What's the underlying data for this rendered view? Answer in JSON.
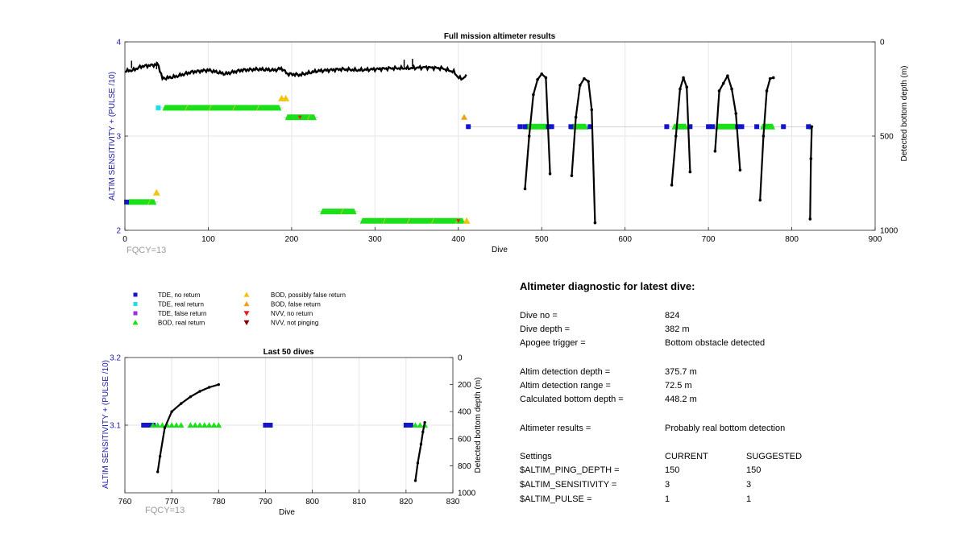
{
  "chart_data": [
    {
      "type": "scatter",
      "title": "Full mission altimeter results",
      "xlabel": "Dive",
      "ylabel": "ALTIM SENSITIVITY + (PULSE /10)",
      "y2label": "Detected bottom depth (m)",
      "xlim": [
        0,
        900
      ],
      "ylim": [
        2,
        4
      ],
      "y2lim": [
        1000,
        0
      ],
      "x_ticks": [
        0,
        100,
        200,
        300,
        400,
        500,
        600,
        700,
        800,
        900
      ],
      "y_ticks": [
        2,
        3,
        4
      ],
      "y2_ticks": [
        0,
        500,
        1000
      ],
      "grid": true,
      "annotation": "FQCY=13",
      "settings_segments": [
        {
          "x0": 0,
          "x1": 40,
          "y": 2.3
        },
        {
          "x0": 40,
          "x1": 190,
          "y": 3.3
        },
        {
          "x0": 190,
          "x1": 232,
          "y": 3.2
        },
        {
          "x0": 232,
          "x1": 280,
          "y": 2.2
        },
        {
          "x0": 280,
          "x1": 410,
          "y": 2.1
        },
        {
          "x0": 410,
          "x1": 476,
          "y": 3.1
        },
        {
          "x0": 476,
          "x1": 824,
          "y": 3.1
        }
      ],
      "bod_real_spans": [
        {
          "x0": 2,
          "x1": 38,
          "y": 2.3
        },
        {
          "x0": 45,
          "x1": 188,
          "y": 3.3
        },
        {
          "x0": 192,
          "x1": 230,
          "y": 3.2
        },
        {
          "x0": 234,
          "x1": 278,
          "y": 2.2
        },
        {
          "x0": 282,
          "x1": 408,
          "y": 2.1
        },
        {
          "x0": 478,
          "x1": 508,
          "y": 3.1
        },
        {
          "x0": 534,
          "x1": 556,
          "y": 3.1
        },
        {
          "x0": 656,
          "x1": 676,
          "y": 3.1
        },
        {
          "x0": 708,
          "x1": 735,
          "y": 3.1
        },
        {
          "x0": 762,
          "x1": 780,
          "y": 3.1
        },
        {
          "x0": 820,
          "x1": 824,
          "y": 3.1
        }
      ],
      "tde_no_return": [
        {
          "x": 2,
          "y": 2.3
        },
        {
          "x": 412,
          "y": 3.1
        },
        {
          "x": 474,
          "y": 3.1
        },
        {
          "x": 480,
          "y": 3.1
        },
        {
          "x": 508,
          "y": 3.1
        },
        {
          "x": 512,
          "y": 3.1
        },
        {
          "x": 535,
          "y": 3.1
        },
        {
          "x": 558,
          "y": 3.1
        },
        {
          "x": 650,
          "y": 3.1
        },
        {
          "x": 678,
          "y": 3.1
        },
        {
          "x": 700,
          "y": 3.1
        },
        {
          "x": 705,
          "y": 3.1
        },
        {
          "x": 735,
          "y": 3.1
        },
        {
          "x": 740,
          "y": 3.1
        },
        {
          "x": 758,
          "y": 3.1
        },
        {
          "x": 790,
          "y": 3.1
        },
        {
          "x": 820,
          "y": 3.1
        }
      ],
      "tde_real_return": [
        {
          "x": 40,
          "y": 3.3
        }
      ],
      "bod_possibly_false": [
        {
          "x": 38,
          "y": 2.4
        },
        {
          "x": 188,
          "y": 3.4
        },
        {
          "x": 193,
          "y": 3.4
        },
        {
          "x": 410,
          "y": 2.1
        }
      ],
      "bod_false": [
        {
          "x": 407,
          "y": 3.2
        }
      ],
      "nvv_no_return": [
        {
          "x": 210,
          "y": 3.2
        },
        {
          "x": 400,
          "y": 2.1
        }
      ],
      "bottom_depth_early": {
        "x0": 0,
        "x1": 410,
        "depth_profile": [
          [
            0,
            155
          ],
          [
            10,
            150
          ],
          [
            20,
            130
          ],
          [
            30,
            125
          ],
          [
            40,
            120
          ],
          [
            45,
            195
          ],
          [
            60,
            185
          ],
          [
            80,
            160
          ],
          [
            100,
            150
          ],
          [
            120,
            170
          ],
          [
            140,
            150
          ],
          [
            160,
            145
          ],
          [
            180,
            150
          ],
          [
            188,
            140
          ],
          [
            195,
            170
          ],
          [
            210,
            175
          ],
          [
            230,
            155
          ],
          [
            260,
            145
          ],
          [
            280,
            150
          ],
          [
            300,
            145
          ],
          [
            320,
            140
          ],
          [
            340,
            140
          ],
          [
            360,
            135
          ],
          [
            380,
            140
          ],
          [
            395,
            160
          ],
          [
            400,
            190
          ],
          [
            405,
            195
          ],
          [
            410,
            180
          ]
        ],
        "spikes": [
          [
            8,
            100
          ],
          [
            38,
            105
          ],
          [
            335,
            95
          ],
          [
            345,
            90
          ]
        ]
      },
      "bottom_depth_arcs": [
        {
          "x": [
            480,
            485,
            490,
            495,
            500,
            505,
            510
          ],
          "depth": [
            780,
            500,
            280,
            200,
            170,
            190,
            700
          ]
        },
        {
          "x": [
            536,
            541,
            546,
            551,
            556,
            560,
            564
          ],
          "depth": [
            710,
            400,
            230,
            195,
            210,
            360,
            960
          ]
        },
        {
          "x": [
            656,
            661,
            666,
            670,
            674,
            678
          ],
          "depth": [
            760,
            500,
            250,
            190,
            240,
            690
          ]
        },
        {
          "x": [
            708,
            713,
            718,
            723,
            728,
            733,
            738
          ],
          "depth": [
            580,
            260,
            220,
            180,
            250,
            380,
            680
          ]
        },
        {
          "x": [
            762,
            766,
            770,
            774,
            778
          ],
          "depth": [
            840,
            500,
            260,
            195,
            190
          ]
        },
        {
          "x": [
            822,
            823,
            824
          ],
          "depth": [
            940,
            620,
            450
          ]
        }
      ]
    },
    {
      "type": "scatter",
      "title": "Last 50 dives",
      "xlabel": "Dive",
      "ylabel": "ALTIM SENSITIVITY + (PULSE /10)",
      "y2label": "Detected bottom depth (m)",
      "xlim": [
        760,
        830
      ],
      "ylim": [
        3.0,
        3.2
      ],
      "y_ticks": [
        3.1,
        3.2
      ],
      "y2lim": [
        1000,
        0
      ],
      "x_ticks": [
        760,
        770,
        780,
        790,
        800,
        810,
        820,
        830
      ],
      "y2_ticks": [
        0,
        200,
        400,
        600,
        800,
        1000
      ],
      "grid": true,
      "annotation": "FQCY=13",
      "tde_no_return": [
        {
          "x": 764,
          "y": 3.1
        },
        {
          "x": 765,
          "y": 3.1
        },
        {
          "x": 766,
          "y": 3.1
        },
        {
          "x": 790,
          "y": 3.1
        },
        {
          "x": 791,
          "y": 3.1
        },
        {
          "x": 820,
          "y": 3.1
        },
        {
          "x": 821,
          "y": 3.1
        }
      ],
      "bod_real_return": [
        766,
        767,
        768,
        769,
        770,
        771,
        772,
        774,
        775,
        776,
        777,
        778,
        779,
        780,
        822,
        823,
        824
      ],
      "bottom_depth_arc_1": [
        [
          767,
          845
        ],
        [
          767.5,
          730
        ],
        [
          768.5,
          520
        ],
        [
          770,
          400
        ],
        [
          772,
          340
        ],
        [
          774,
          290
        ],
        [
          776,
          250
        ],
        [
          778,
          220
        ],
        [
          780,
          200
        ]
      ],
      "bottom_depth_arc_2": [
        [
          822,
          910
        ],
        [
          822.5,
          780
        ],
        [
          823.2,
          640
        ],
        [
          823.6,
          550
        ],
        [
          824,
          480
        ]
      ]
    }
  ],
  "legend": {
    "items": [
      {
        "label": "TDE, no return",
        "color": "#1414c8",
        "marker": "square"
      },
      {
        "label": "TDE, real return",
        "color": "#18e0ef",
        "marker": "square"
      },
      {
        "label": "TDE, false return",
        "color": "#9b30d8",
        "marker": "square"
      },
      {
        "label": "BOD, real return",
        "color": "#19e019",
        "marker": "triangle-up"
      },
      {
        "label": "BOD, possibly false return",
        "color": "#f2c40e",
        "marker": "triangle-up"
      },
      {
        "label": "BOD, false return",
        "color": "#f0a010",
        "marker": "triangle-up"
      },
      {
        "label": "NVV, no return",
        "color": "#e02020",
        "marker": "triangle-down"
      },
      {
        "label": "NVV, not pinging",
        "color": "#8a0000",
        "marker": "triangle-down"
      }
    ]
  },
  "diagnostic": {
    "title": "Altimeter diagnostic for latest dive:",
    "dive_no_label": "Dive no =",
    "dive_no_value": "824",
    "dive_depth_label": "Dive depth =",
    "dive_depth_value": "382 m",
    "apogee_label": "Apogee trigger =",
    "apogee_value": "Bottom obstacle detected",
    "altim_depth_label": "Altim detection depth =",
    "altim_depth_value": "375.7 m",
    "altim_range_label": "Altim detection range =",
    "altim_range_value": "72.5 m",
    "calc_bottom_label": "Calculated bottom depth =",
    "calc_bottom_value": "448.2 m",
    "results_label": "Altimeter results =",
    "results_value": "Probably real bottom detection",
    "settings_label": "Settings",
    "current_label": "CURRENT",
    "suggested_label": "SUGGESTED",
    "ping_depth_label": "$ALTIM_PING_DEPTH =",
    "ping_depth_current": "150",
    "ping_depth_suggested": "150",
    "sensitivity_label": "$ALTIM_SENSITIVITY =",
    "sensitivity_current": "3",
    "sensitivity_suggested": "3",
    "pulse_label": "$ALTIM_PULSE =",
    "pulse_current": "1",
    "pulse_suggested": "1"
  },
  "colors": {
    "axis_label_blue": "#1a1aa8",
    "tde_no_return": "#1414c8",
    "tde_real_return": "#18e0ef",
    "bod_real": "#19e019",
    "bod_possibly_false": "#f2c40e",
    "bod_false": "#f0a010",
    "nvv_no_return": "#e02020",
    "grid": "#e6e6e6",
    "fqcy": "#9a9a9a"
  }
}
